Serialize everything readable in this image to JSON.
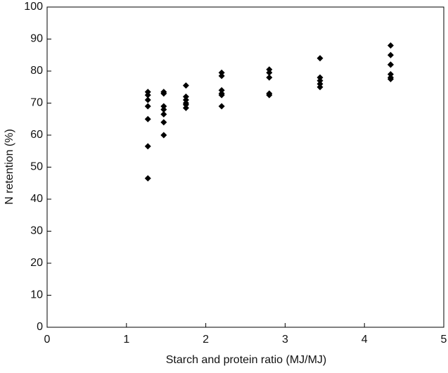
{
  "chart_data": {
    "type": "scatter",
    "xlabel": "Starch and protein ratio (MJ/MJ)",
    "ylabel": "N retention (%)",
    "color": "#000000",
    "x": [
      1.27,
      1.27,
      1.27,
      1.27,
      1.27,
      1.27,
      1.27,
      1.47,
      1.47,
      1.47,
      1.47,
      1.47,
      1.47,
      1.47,
      1.75,
      1.75,
      1.75,
      1.75,
      1.75,
      1.75,
      2.2,
      2.2,
      2.2,
      2.2,
      2.2,
      2.2,
      2.8,
      2.8,
      2.8,
      2.8,
      2.8,
      3.44,
      3.44,
      3.44,
      3.44,
      3.44,
      4.33,
      4.33,
      4.33,
      4.33,
      4.33,
      4.33,
      4.33
    ],
    "y": [
      73.5,
      72.5,
      71,
      69,
      65,
      56.5,
      46.5,
      73.5,
      73,
      69,
      68,
      66.5,
      64,
      60,
      75.5,
      72,
      71,
      70,
      69.5,
      68.5,
      79.5,
      78.5,
      74,
      73,
      72.5,
      69,
      80.5,
      79.5,
      78,
      73,
      72.5,
      84,
      78,
      77,
      76,
      75,
      88,
      85,
      82,
      82,
      79,
      78,
      77.5
    ],
    "xlim": [
      0,
      5
    ],
    "xticks": [
      0,
      1,
      2,
      3,
      4,
      5
    ],
    "ylim": [
      0,
      100
    ],
    "yticks": [
      0,
      10,
      20,
      30,
      40,
      50,
      60,
      70,
      80,
      90,
      100
    ]
  }
}
